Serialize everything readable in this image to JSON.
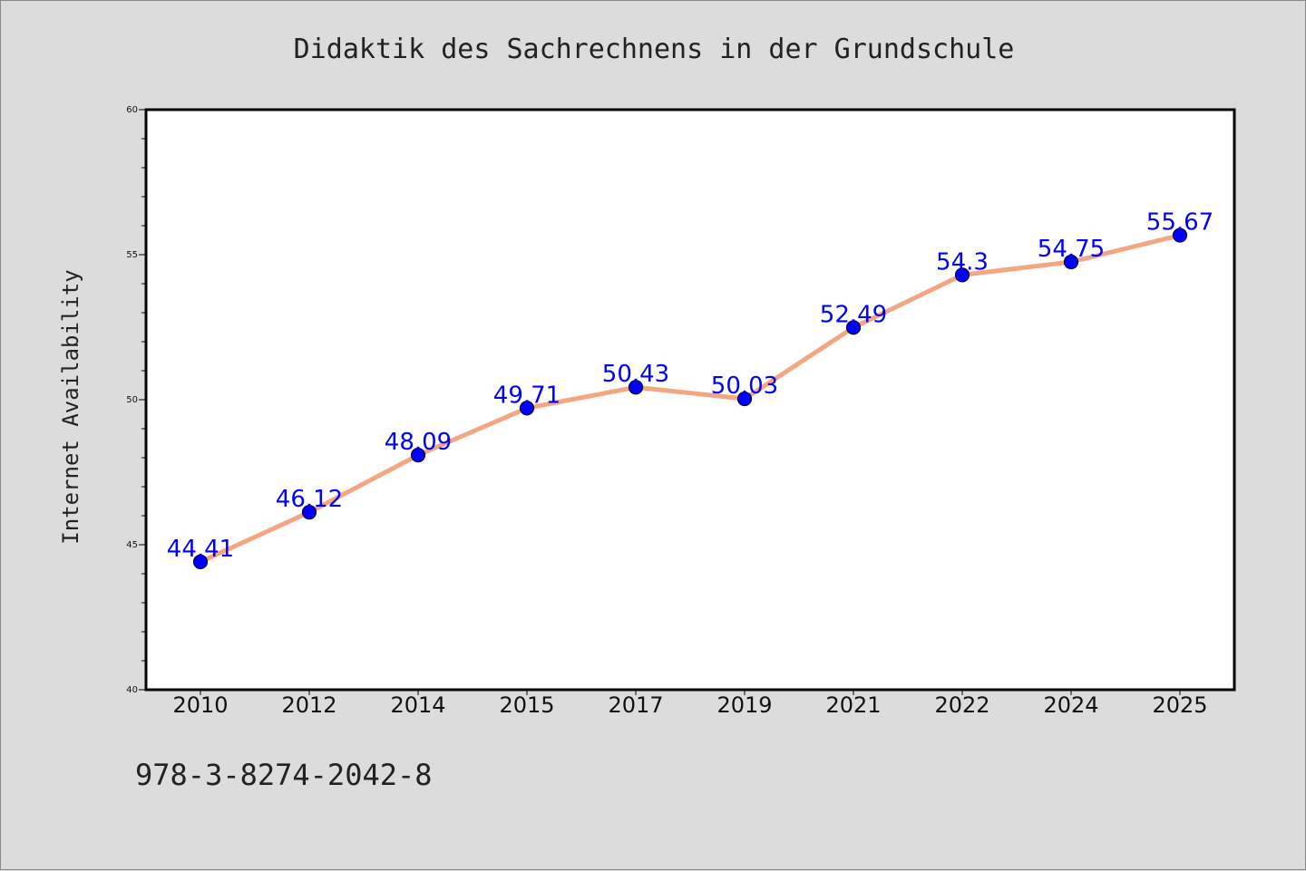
{
  "chart_data": {
    "type": "line",
    "title": "Didaktik des Sachrechnens in der Grundschule",
    "xlabel": "",
    "ylabel": "Internet Availability",
    "categories": [
      "2010",
      "2012",
      "2014",
      "2015",
      "2017",
      "2019",
      "2021",
      "2022",
      "2024",
      "2025"
    ],
    "series": [
      {
        "values": [
          44.41,
          46.12,
          48.09,
          49.71,
          50.43,
          50.03,
          52.49,
          54.3,
          54.75,
          55.67
        ],
        "labels": [
          "44.41",
          "46.12",
          "48.09",
          "49.71",
          "50.43",
          "50.03",
          "52.49",
          "54.3",
          "54.75",
          "55.67"
        ]
      }
    ],
    "ylim": [
      40,
      60
    ],
    "yticks": [
      "40",
      "45",
      "50",
      "55",
      "60"
    ],
    "grid": false,
    "legend": "none",
    "colors": {
      "line": "#f4a582",
      "marker": "#0000ff",
      "label": "#0000ff",
      "background": "#dcdcdc",
      "plot_background": "#ffffff"
    }
  },
  "footer_text": "978-3-8274-2042-8"
}
